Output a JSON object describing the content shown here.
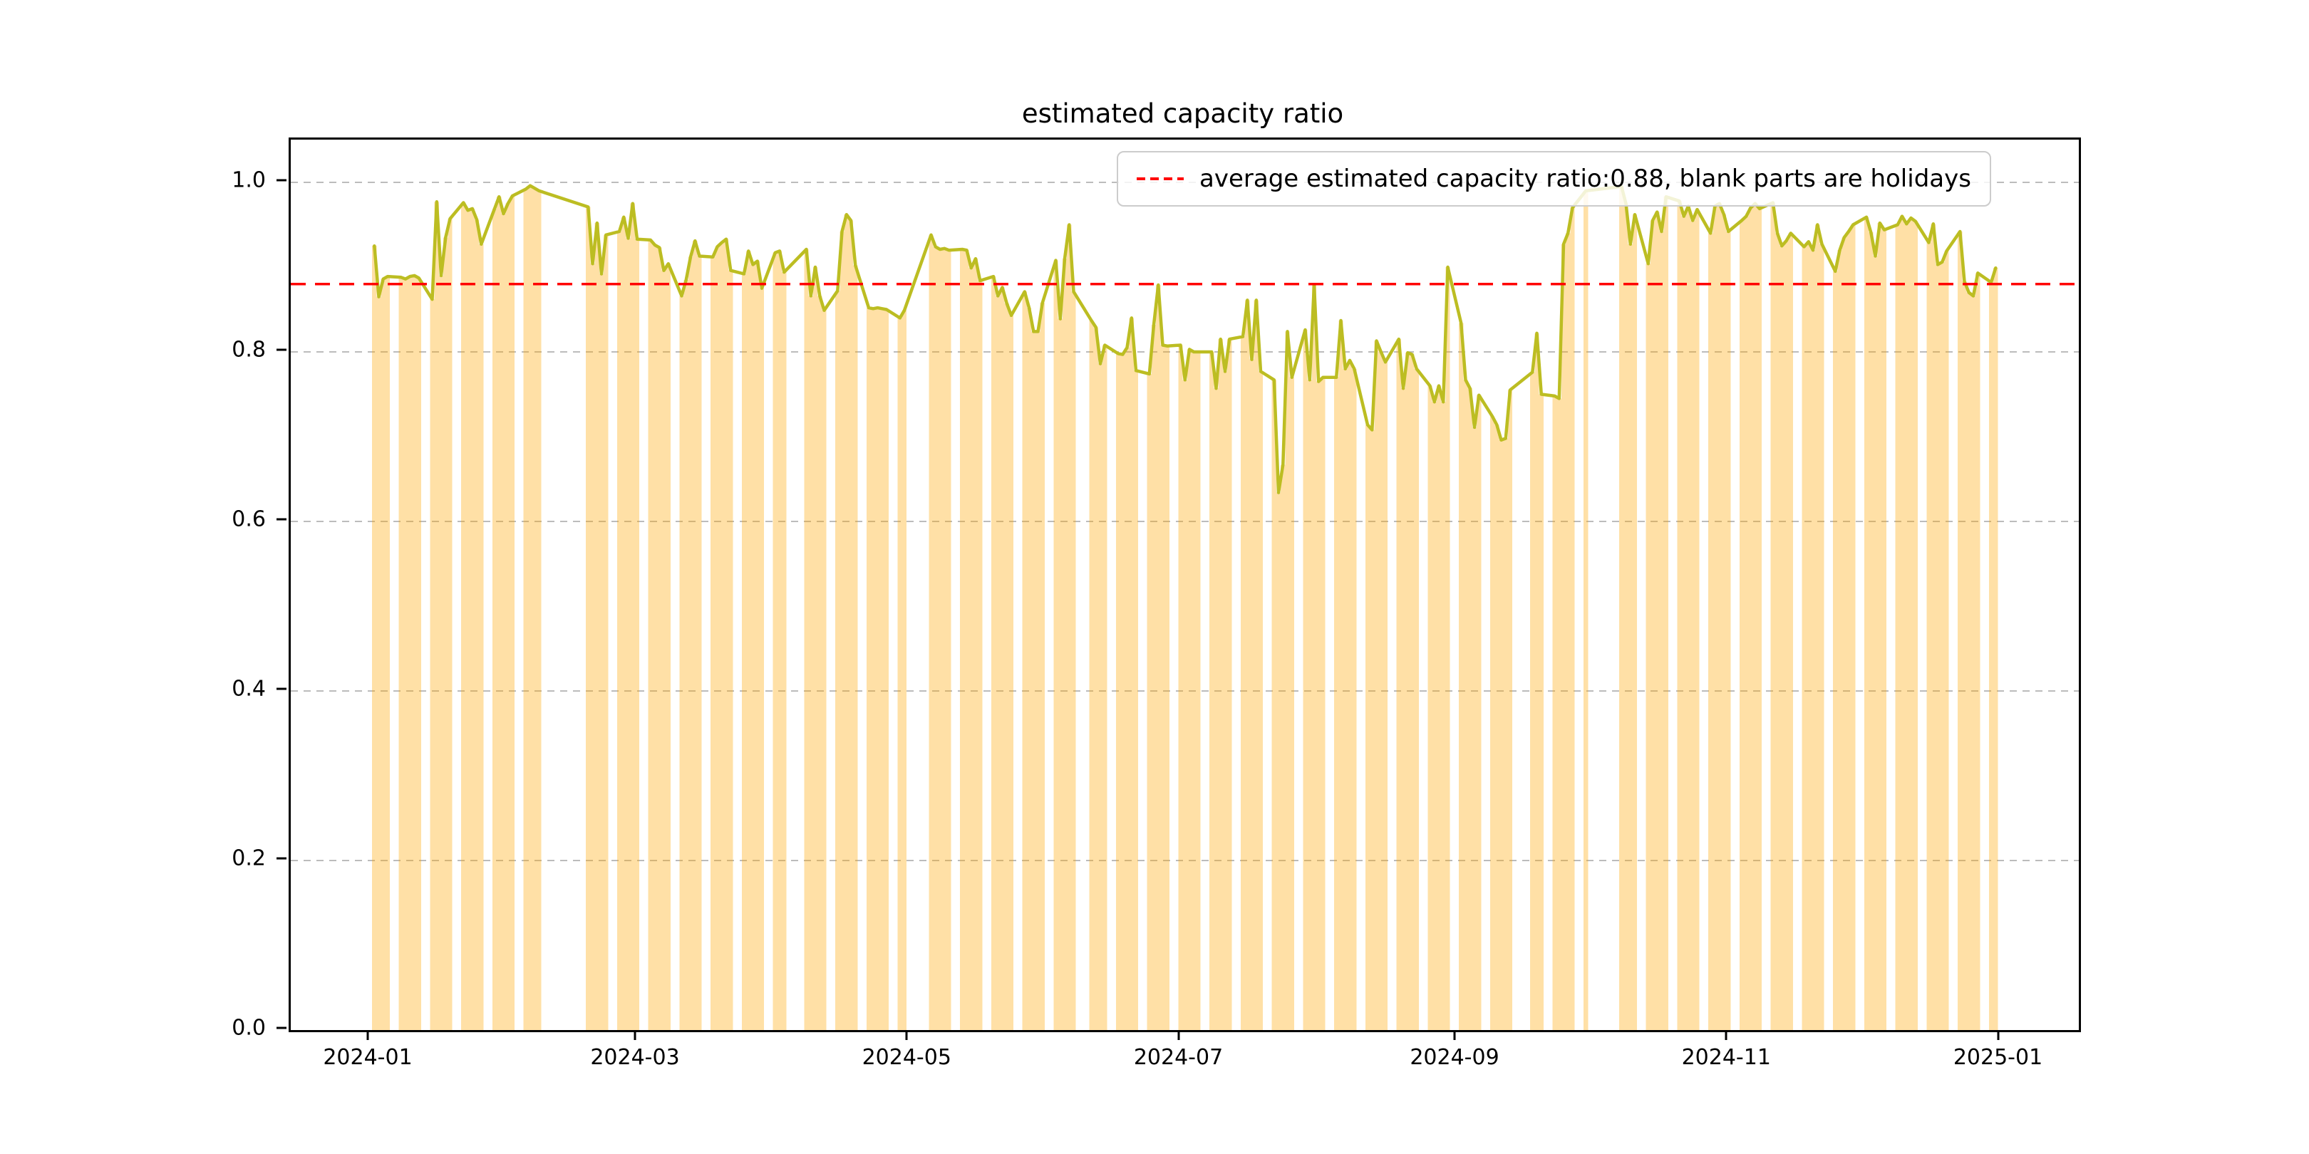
{
  "chart_data": {
    "type": "line",
    "title": "estimated capacity ratio",
    "legend_label": "average estimated capacity ratio:0.88, blank parts are holidays",
    "legend_position": "upper right",
    "average_value": 0.88,
    "average_line_color": "#ff0000",
    "line_color": "#bcbd22",
    "fill_color": "rgba(255,165,0,0.35)",
    "grid_color": "#b2b2b2",
    "grid_on": true,
    "ylim": [
      0,
      1.0504
    ],
    "x_domain_days": [
      -17.76,
      383.68
    ],
    "x_epoch": "2024-01-01",
    "y_ticks": [
      {
        "label": "0.0",
        "value": 0.0
      },
      {
        "label": "0.2",
        "value": 0.2
      },
      {
        "label": "0.4",
        "value": 0.4
      },
      {
        "label": "0.6",
        "value": 0.6
      },
      {
        "label": "0.8",
        "value": 0.8
      },
      {
        "label": "1.0",
        "value": 1.0
      }
    ],
    "x_ticks": [
      {
        "label": "2024-01",
        "day": 0
      },
      {
        "label": "2024-03",
        "day": 60
      },
      {
        "label": "2024-05",
        "day": 121
      },
      {
        "label": "2024-07",
        "day": 182
      },
      {
        "label": "2024-09",
        "day": 244
      },
      {
        "label": "2024-11",
        "day": 305
      },
      {
        "label": "2025-01",
        "day": 366
      }
    ],
    "notes": "blank parts are holidays (weekends and CN market holidays); orange fill spans trading days only; olive line is continuous across gaps",
    "days": [
      [
        1,
        0.925
      ],
      [
        2,
        0.865
      ],
      [
        3,
        0.886
      ],
      [
        4,
        0.889
      ],
      [
        7,
        0.888
      ],
      [
        8,
        0.886
      ],
      [
        9,
        0.889
      ],
      [
        10,
        0.89
      ],
      [
        11,
        0.887
      ],
      [
        14,
        0.862
      ],
      [
        15,
        0.977
      ],
      [
        16,
        0.89
      ],
      [
        17,
        0.935
      ],
      [
        18,
        0.957
      ],
      [
        21,
        0.976
      ],
      [
        22,
        0.967
      ],
      [
        23,
        0.969
      ],
      [
        24,
        0.956
      ],
      [
        25,
        0.927
      ],
      [
        28,
        0.969
      ],
      [
        29,
        0.983
      ],
      [
        30,
        0.963
      ],
      [
        31,
        0.975
      ],
      [
        32,
        0.984
      ],
      [
        35,
        0.992
      ],
      [
        36,
        0.996
      ],
      [
        37,
        0.993
      ],
      [
        38,
        0.99
      ],
      [
        49,
        0.971
      ],
      [
        50,
        0.904
      ],
      [
        51,
        0.952
      ],
      [
        52,
        0.892
      ],
      [
        53,
        0.938
      ],
      [
        56,
        0.942
      ],
      [
        57,
        0.959
      ],
      [
        58,
        0.934
      ],
      [
        59,
        0.975
      ],
      [
        60,
        0.933
      ],
      [
        63,
        0.932
      ],
      [
        64,
        0.926
      ],
      [
        65,
        0.923
      ],
      [
        66,
        0.896
      ],
      [
        67,
        0.904
      ],
      [
        70,
        0.866
      ],
      [
        71,
        0.885
      ],
      [
        72,
        0.912
      ],
      [
        73,
        0.931
      ],
      [
        74,
        0.913
      ],
      [
        77,
        0.912
      ],
      [
        78,
        0.924
      ],
      [
        79,
        0.929
      ],
      [
        80,
        0.933
      ],
      [
        81,
        0.896
      ],
      [
        84,
        0.892
      ],
      [
        85,
        0.919
      ],
      [
        86,
        0.903
      ],
      [
        87,
        0.907
      ],
      [
        88,
        0.875
      ],
      [
        91,
        0.917
      ],
      [
        92,
        0.919
      ],
      [
        93,
        0.894
      ],
      [
        98,
        0.921
      ],
      [
        99,
        0.866
      ],
      [
        100,
        0.9
      ],
      [
        101,
        0.866
      ],
      [
        102,
        0.849
      ],
      [
        105,
        0.872
      ],
      [
        106,
        0.942
      ],
      [
        107,
        0.962
      ],
      [
        108,
        0.955
      ],
      [
        109,
        0.902
      ],
      [
        112,
        0.852
      ],
      [
        113,
        0.851
      ],
      [
        114,
        0.852
      ],
      [
        115,
        0.851
      ],
      [
        116,
        0.85
      ],
      [
        119,
        0.84
      ],
      [
        120,
        0.849
      ],
      [
        126,
        0.938
      ],
      [
        127,
        0.924
      ],
      [
        128,
        0.921
      ],
      [
        129,
        0.922
      ],
      [
        130,
        0.92
      ],
      [
        133,
        0.921
      ],
      [
        134,
        0.92
      ],
      [
        135,
        0.899
      ],
      [
        136,
        0.91
      ],
      [
        137,
        0.884
      ],
      [
        140,
        0.889
      ],
      [
        141,
        0.866
      ],
      [
        142,
        0.876
      ],
      [
        143,
        0.857
      ],
      [
        144,
        0.843
      ],
      [
        147,
        0.871
      ],
      [
        148,
        0.852
      ],
      [
        149,
        0.824
      ],
      [
        150,
        0.824
      ],
      [
        151,
        0.858
      ],
      [
        154,
        0.908
      ],
      [
        155,
        0.839
      ],
      [
        156,
        0.91
      ],
      [
        157,
        0.95
      ],
      [
        158,
        0.871
      ],
      [
        162,
        0.837
      ],
      [
        163,
        0.829
      ],
      [
        164,
        0.786
      ],
      [
        165,
        0.808
      ],
      [
        168,
        0.798
      ],
      [
        169,
        0.797
      ],
      [
        170,
        0.805
      ],
      [
        171,
        0.84
      ],
      [
        172,
        0.778
      ],
      [
        175,
        0.774
      ],
      [
        176,
        0.832
      ],
      [
        177,
        0.879
      ],
      [
        178,
        0.808
      ],
      [
        179,
        0.807
      ],
      [
        182,
        0.808
      ],
      [
        183,
        0.767
      ],
      [
        184,
        0.803
      ],
      [
        185,
        0.8
      ],
      [
        186,
        0.8
      ],
      [
        189,
        0.8
      ],
      [
        190,
        0.757
      ],
      [
        191,
        0.815
      ],
      [
        192,
        0.777
      ],
      [
        193,
        0.815
      ],
      [
        196,
        0.818
      ],
      [
        197,
        0.861
      ],
      [
        198,
        0.791
      ],
      [
        199,
        0.861
      ],
      [
        200,
        0.777
      ],
      [
        203,
        0.767
      ],
      [
        204,
        0.634
      ],
      [
        205,
        0.667
      ],
      [
        206,
        0.824
      ],
      [
        207,
        0.77
      ],
      [
        210,
        0.826
      ],
      [
        211,
        0.767
      ],
      [
        212,
        0.879
      ],
      [
        213,
        0.765
      ],
      [
        214,
        0.77
      ],
      [
        217,
        0.77
      ],
      [
        218,
        0.837
      ],
      [
        219,
        0.78
      ],
      [
        220,
        0.79
      ],
      [
        221,
        0.78
      ],
      [
        224,
        0.714
      ],
      [
        225,
        0.708
      ],
      [
        226,
        0.813
      ],
      [
        227,
        0.8
      ],
      [
        228,
        0.788
      ],
      [
        231,
        0.815
      ],
      [
        232,
        0.757
      ],
      [
        233,
        0.799
      ],
      [
        234,
        0.797
      ],
      [
        235,
        0.78
      ],
      [
        238,
        0.76
      ],
      [
        239,
        0.741
      ],
      [
        240,
        0.76
      ],
      [
        241,
        0.741
      ],
      [
        242,
        0.9
      ],
      [
        245,
        0.834
      ],
      [
        246,
        0.767
      ],
      [
        247,
        0.757
      ],
      [
        248,
        0.711
      ],
      [
        249,
        0.749
      ],
      [
        252,
        0.724
      ],
      [
        253,
        0.714
      ],
      [
        254,
        0.696
      ],
      [
        255,
        0.698
      ],
      [
        256,
        0.755
      ],
      [
        261,
        0.776
      ],
      [
        262,
        0.822
      ],
      [
        263,
        0.75
      ],
      [
        266,
        0.748
      ],
      [
        267,
        0.745
      ],
      [
        268,
        0.927
      ],
      [
        269,
        0.94
      ],
      [
        270,
        0.97
      ],
      [
        273,
        0.99
      ],
      [
        281,
        0.995
      ],
      [
        282,
        0.975
      ],
      [
        283,
        0.927
      ],
      [
        284,
        0.962
      ],
      [
        287,
        0.904
      ],
      [
        288,
        0.955
      ],
      [
        289,
        0.965
      ],
      [
        290,
        0.942
      ],
      [
        291,
        0.983
      ],
      [
        294,
        0.978
      ],
      [
        295,
        0.96
      ],
      [
        296,
        0.972
      ],
      [
        297,
        0.955
      ],
      [
        298,
        0.968
      ],
      [
        301,
        0.94
      ],
      [
        302,
        0.972
      ],
      [
        303,
        0.975
      ],
      [
        304,
        0.962
      ],
      [
        305,
        0.942
      ],
      [
        308,
        0.955
      ],
      [
        309,
        0.96
      ],
      [
        310,
        0.97
      ],
      [
        311,
        0.975
      ],
      [
        312,
        0.969
      ],
      [
        315,
        0.976
      ],
      [
        316,
        0.94
      ],
      [
        317,
        0.925
      ],
      [
        318,
        0.931
      ],
      [
        319,
        0.94
      ],
      [
        322,
        0.924
      ],
      [
        323,
        0.93
      ],
      [
        324,
        0.92
      ],
      [
        325,
        0.95
      ],
      [
        326,
        0.927
      ],
      [
        329,
        0.895
      ],
      [
        330,
        0.92
      ],
      [
        331,
        0.935
      ],
      [
        332,
        0.942
      ],
      [
        333,
        0.95
      ],
      [
        336,
        0.959
      ],
      [
        337,
        0.941
      ],
      [
        338,
        0.913
      ],
      [
        339,
        0.952
      ],
      [
        340,
        0.944
      ],
      [
        343,
        0.95
      ],
      [
        344,
        0.96
      ],
      [
        345,
        0.951
      ],
      [
        346,
        0.958
      ],
      [
        347,
        0.954
      ],
      [
        350,
        0.929
      ],
      [
        351,
        0.951
      ],
      [
        352,
        0.903
      ],
      [
        353,
        0.906
      ],
      [
        354,
        0.919
      ],
      [
        357,
        0.942
      ],
      [
        358,
        0.883
      ],
      [
        359,
        0.87
      ],
      [
        360,
        0.866
      ],
      [
        361,
        0.893
      ],
      [
        364,
        0.882
      ],
      [
        365,
        0.899
      ]
    ]
  }
}
